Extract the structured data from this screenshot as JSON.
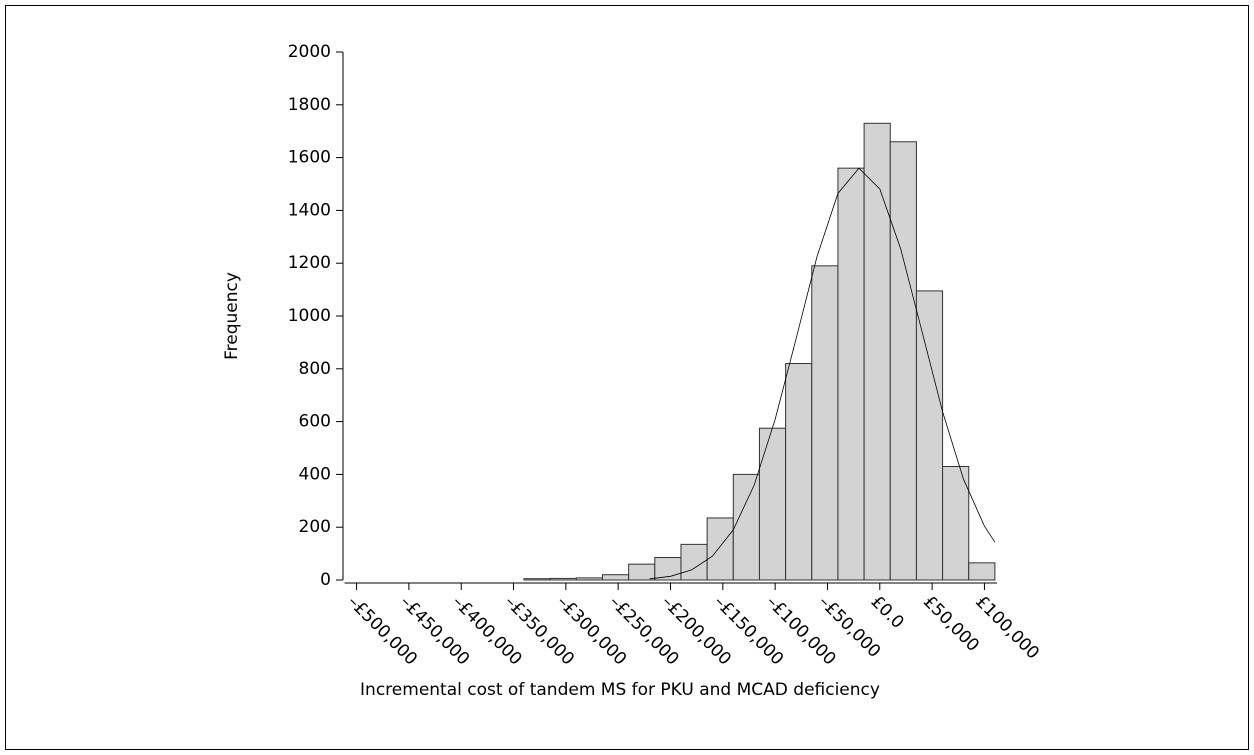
{
  "chart_data": {
    "type": "histogram",
    "xlabel": "Incremental cost of tandem MS for PKU and MCAD deficiency",
    "ylabel": "Frequency",
    "bins": [
      -340000,
      -315000,
      -290000,
      -265000,
      -240000,
      -215000,
      -190000,
      -165000,
      -140000,
      -115000,
      -90000,
      -65000,
      -40000,
      -15000,
      10000,
      35000,
      60000,
      85000,
      110000
    ],
    "values": [
      5,
      6,
      8,
      20,
      60,
      85,
      135,
      235,
      400,
      575,
      820,
      1190,
      1560,
      1730,
      1660,
      1095,
      430,
      65
    ],
    "color": "#d3d3d3",
    "curve": {
      "x": [
        -220000,
        -200000,
        -180000,
        -160000,
        -140000,
        -120000,
        -100000,
        -80000,
        -60000,
        -40000,
        -20000,
        0,
        20000,
        40000,
        60000,
        80000,
        100000,
        110000
      ],
      "values": [
        4.7,
        14,
        38,
        90,
        190,
        360,
        608,
        914,
        1225,
        1464,
        1560,
        1481,
        1254,
        946,
        637,
        382,
        204,
        143
      ]
    },
    "xlim": [
      -512000,
      112000
    ],
    "xticks": [
      {
        "value": -500000,
        "label": "–£500,000"
      },
      {
        "value": -450000,
        "label": "–£450,000"
      },
      {
        "value": -400000,
        "label": "–£400,000"
      },
      {
        "value": -350000,
        "label": "–£350,000"
      },
      {
        "value": -300000,
        "label": "–£300,000"
      },
      {
        "value": -250000,
        "label": "–£250,000"
      },
      {
        "value": -200000,
        "label": "–£200,000"
      },
      {
        "value": -150000,
        "label": "–£150,000"
      },
      {
        "value": -100000,
        "label": "–£100,000"
      },
      {
        "value": -50000,
        "label": "–£50,000"
      },
      {
        "value": 0,
        "label": "£0.0"
      },
      {
        "value": 50000,
        "label": "£50,000"
      },
      {
        "value": 100000,
        "label": "£100,000"
      }
    ],
    "ylim": [
      0,
      2000
    ],
    "yticks": [
      0,
      200,
      400,
      600,
      800,
      1000,
      1200,
      1400,
      1600,
      1800,
      2000
    ]
  }
}
